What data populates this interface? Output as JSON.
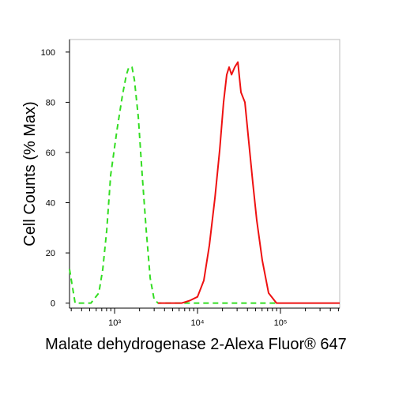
{
  "chart_data": {
    "type": "line",
    "xlabel": "Malate dehydrogenase 2-Alexa Fluor® 647",
    "ylabel": "Cell Counts (% Max)",
    "xscale": "log",
    "xlim": [
      286,
      518000
    ],
    "ylim": [
      -2,
      105
    ],
    "xticks": [
      {
        "value": 1000,
        "label": "10³"
      },
      {
        "value": 10000,
        "label": "10⁴"
      },
      {
        "value": 100000,
        "label": "10⁵"
      }
    ],
    "xminorticks": [
      300,
      400,
      500,
      600,
      700,
      800,
      900,
      2000,
      3000,
      4000,
      5000,
      6000,
      7000,
      8000,
      9000,
      20000,
      30000,
      40000,
      50000,
      60000,
      70000,
      80000,
      90000,
      200000,
      300000,
      400000,
      500000
    ],
    "yticks": [
      0,
      20,
      40,
      60,
      80,
      100
    ],
    "series": [
      {
        "color": "#33dd22",
        "linestyle": "dashed",
        "x": [
          286,
          334,
          518,
          646,
          720,
          803,
          896,
          1068,
          1245,
          1389,
          1484,
          1620,
          1730,
          1931,
          2154,
          2404,
          2683,
          2994,
          3341,
          89600
        ],
        "values": [
          13.5,
          0,
          0,
          4,
          13.5,
          29,
          51,
          69,
          83,
          91,
          94,
          94,
          89,
          74,
          51,
          29,
          10,
          1.5,
          0,
          0
        ]
      },
      {
        "color": "#ee1111",
        "linestyle": "solid",
        "x": [
          3341,
          6452,
          8035,
          10000,
          11920,
          13890,
          16220,
          18490,
          20620,
          22500,
          24040,
          25700,
          28060,
          30620,
          33410,
          37260,
          41560,
          46420,
          51790,
          60370,
          71970,
          89600,
          518000
        ],
        "values": [
          0,
          0,
          1,
          2.5,
          9,
          23,
          42,
          61,
          80,
          91,
          94,
          91,
          94,
          96,
          84,
          80,
          64,
          48,
          33,
          17,
          4,
          0,
          0
        ]
      }
    ]
  }
}
